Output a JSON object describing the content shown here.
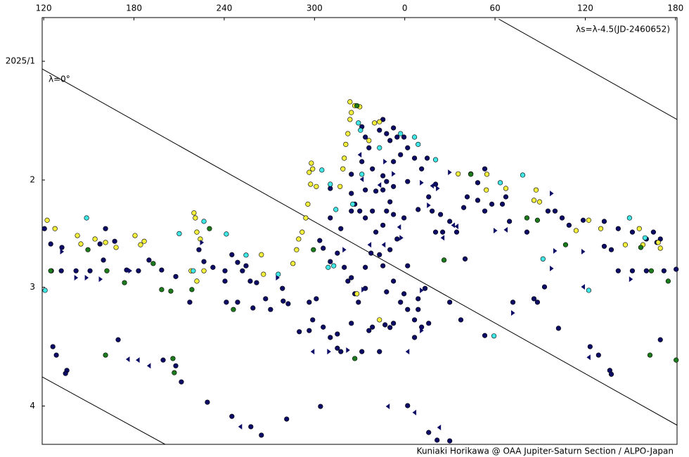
{
  "chart_data": {
    "type": "scatter",
    "grid": false,
    "y_inverted": true,
    "xlim": [
      119,
      541
    ],
    "ylim": [
      -11.4,
      100
    ],
    "xticks": [
      120,
      180,
      240,
      300,
      {
        "value": 360,
        "label": "0"
      },
      {
        "value": 420,
        "label": "60"
      },
      {
        "value": 480,
        "label": "120"
      },
      {
        "value": 540,
        "label": "180"
      }
    ],
    "yticks": [
      {
        "value": 0,
        "label": "2025/1"
      },
      {
        "value": 31,
        "label": "2"
      },
      {
        "value": 59,
        "label": "3"
      },
      {
        "value": 90,
        "label": "4"
      }
    ],
    "formula": "λs=λ-4.5(JD-2460652)",
    "line_label": "λ=0°",
    "credit": "Kuniaki Horikawa @ OAA Jupiter-Saturn Section / ALPO-Japan",
    "line_color": "#000000",
    "lines": [
      {
        "x": [
          119,
          541
        ],
        "y": [
          2.0,
          95.0
        ]
      },
      {
        "x": [
          119,
          200.7
        ],
        "y": [
          82.4,
          100
        ]
      },
      {
        "x": [
          422.5,
          541
        ],
        "y": [
          -11.0,
          15.2
        ]
      }
    ],
    "series": [
      {
        "color": "#0c0c66",
        "marker": "circle",
        "x": [
          120.5,
          124.7,
          132.1,
          125.1,
          131.7,
          141.5,
          150.8,
          159.7,
          157.4,
          161.1,
          167.2,
          175.1,
          183,
          190,
          198.4,
          207.8,
          217.1,
          223.2,
          226.5,
          232.5,
          240.5,
          245.1,
          248.9,
          252.1,
          254.5,
          257.3,
          261.5,
          240.5,
          241.4,
          248.9,
          259.1,
          267.5,
          270.8,
          279.2,
          282.5,
          278.7,
          296.5,
          298.8,
          289.9,
          296.5,
          305.8,
          310.5,
          315.2,
          301.2,
          303.5,
          305.8,
          310.5,
          315.2,
          319.8,
          322.2,
          324.5,
          326.8,
          329.2,
          333.8,
          333.8,
          337.6,
          343.2,
          345.5,
          350.2,
          347.9,
          352.5,
          357.2,
          359.5,
          361.9,
          366.5,
          368.9,
          371.2,
          375.9,
          352.5,
          346.9,
          338.5,
          336.2,
          324.5,
          315.2,
          317.5,
          331.5,
          343.2,
          310.5,
          317.5,
          324.5,
          326.8,
          330.1,
          333.8,
          338.5,
          340.8,
          345.5,
          347.9,
          350.2,
          352.5,
          354.9,
          359.5,
          324.5,
          333.8,
          340.8,
          345.5,
          347.9,
          352.5,
          310.5,
          324.5,
          331.5,
          336.2,
          338.5,
          345.5,
          352.5,
          357.2,
          361.9,
          366.5,
          371.2,
          374.9,
          343.2,
          347.9,
          350.2,
          354.9,
          333.8,
          331.5,
          345.5,
          352.5,
          359.5,
          361.9,
          368.9,
          375.9,
          378.2,
          380.5,
          385.2,
          389.9,
          394.5,
          399.2,
          401.5,
          408.5,
          413.2,
          417.9,
          408.5,
          413.2,
          427.2,
          424.9,
          429.6,
          441.2,
          455.2,
          459.9,
          464.6,
          469.2,
          478.6,
          492.6,
          501.9,
          511.3,
          520.6,
          525.3,
          527.6,
          529.9,
          492.6,
          497.3,
          501.9,
          511.3,
          520.6,
          532.3,
          540.4,
          400.1,
          431.9,
          445.9,
          448.2,
          462.2,
          413.2,
          483.2,
          488.8,
          496.3,
          497.3,
          529.9,
          452.9,
          389.9,
          397.3,
          361.9,
          373.5,
          368.9,
          383.8,
          380.5,
          126.1,
          128.4,
          135.4,
          134.5,
          169.5,
          199.4,
          207.8,
          211.5,
          228.8,
          245.1,
          257.7,
          264.7,
          281.5,
          304.0,
          361.9,
          375.9,
          381.5,
          389.9,
          366.5,
          350.2
        ],
        "y": [
          43.7,
          47.7,
          48.6,
          54.7,
          54.7,
          54.7,
          54.7,
          51.9,
          47.7,
          43.7,
          47.0,
          54.5,
          54.7,
          51.9,
          54.5,
          56.2,
          62.9,
          49.2,
          52.3,
          53.8,
          54.7,
          50.5,
          52.5,
          54.7,
          53.4,
          57.4,
          57.8,
          57.4,
          62.9,
          62.9,
          64.4,
          62.0,
          64.8,
          62.6,
          63.3,
          59.3,
          62.9,
          67.5,
          70.6,
          70.3,
          69.4,
          72.1,
          71.2,
          62.0,
          46.8,
          48.8,
          52.3,
          50.1,
          53.8,
          57.4,
          56.5,
          60.7,
          62.9,
          59.3,
          53.8,
          50.1,
          50.5,
          53.4,
          49.2,
          60.2,
          57.4,
          62.9,
          60.7,
          64.8,
          67.5,
          64.8,
          69.4,
          68.4,
          68.4,
          68.8,
          69.4,
          70.3,
          68.4,
          74.9,
          75.8,
          75.8,
          75.8,
          40.9,
          43.7,
          39.1,
          37.3,
          39.1,
          40.9,
          39.1,
          44.6,
          42.8,
          39.1,
          36.7,
          40.0,
          46.4,
          40.9,
          34.5,
          33.6,
          33.9,
          33.6,
          31.4,
          32.7,
          33.2,
          29.5,
          26.2,
          22.6,
          28.1,
          29.9,
          26.2,
          24.4,
          22.6,
          25.3,
          28.1,
          25.3,
          18.0,
          18.9,
          20.7,
          19.8,
          19.8,
          17.1,
          15.2,
          17.4,
          19.8,
          31.4,
          38.7,
          35.4,
          39.1,
          44.6,
          44.6,
          41.8,
          44.6,
          38.2,
          35.4,
          36.3,
          39.1,
          37.3,
          31.7,
          28.1,
          35.4,
          37.3,
          41.8,
          44.6,
          39.1,
          39.1,
          40.9,
          42.8,
          41.5,
          41.8,
          43.7,
          44.6,
          46.4,
          44.6,
          47.3,
          46.4,
          48.3,
          49.2,
          54.7,
          54.7,
          54.7,
          54.7,
          54.3,
          51.6,
          62.9,
          62.0,
          62.9,
          69.7,
          71.6,
          74.5,
          76.7,
          80.7,
          81.7,
          72.7,
          58.9,
          62.9,
          67.5,
          53.4,
          59.3,
          62.0,
          40.0,
          32.1,
          74.5,
          76.7,
          80.7,
          81.5,
          72.7,
          78.0,
          79.5,
          83.7,
          89.0,
          92.7,
          95.4,
          97.6,
          93.4,
          90.1,
          89.9,
          96.9,
          98.9,
          99.1,
          72.1,
          69.5
        ]
      },
      {
        "color": "#f2ee3c",
        "marker": "circle",
        "x": [
          122.3,
          127.5,
          142.4,
          144.7,
          154.1,
          161.1,
          168.1,
          180.7,
          184.4,
          186.8,
          218.0,
          221.8,
          219.9,
          220.8,
          221.8,
          224.1,
          226.5,
          264.7,
          266.1,
          285.7,
          288.1,
          289.5,
          291.8,
          294.2,
          295.6,
          297.4,
          298.8,
          297.9,
          317.0,
          318.9,
          319.8,
          320.8,
          322.2,
          323.6,
          323.6,
          324.5,
          326.8,
          330.1,
          336.2,
          339.9,
          343.2,
          395.5,
          403.9,
          414.6,
          414.2,
          427.2,
          447.3,
          445.9,
          449.6,
          473.9,
          482.3,
          490.3,
          506.6,
          515.9,
          518.3,
          528.5,
          529.9,
          328.2,
          343.2,
          296.5,
          301.2
        ],
        "y": [
          41.5,
          43.7,
          45.5,
          47.7,
          46.4,
          47.3,
          48.6,
          45.5,
          47.9,
          47.0,
          54.7,
          57.4,
          39.6,
          40.9,
          44.6,
          46.4,
          54.7,
          50.5,
          55.6,
          52.8,
          49.2,
          46.4,
          44.6,
          40.9,
          37.3,
          32.1,
          28.1,
          26.6,
          32.7,
          28.1,
          25.3,
          21.7,
          18.9,
          15.2,
          10.6,
          13.4,
          11.6,
          11.9,
          20.7,
          16.1,
          15.8,
          29.4,
          29.4,
          29.5,
          33.6,
          33.2,
          33.6,
          36.3,
          36.7,
          44.2,
          41.5,
          43.7,
          47.9,
          43.7,
          47.9,
          47.3,
          48.8,
          60.7,
          67.5,
          29.0,
          32.7
        ]
      },
      {
        "color": "#40e6e6",
        "marker": "circle",
        "x": [
          120.9,
          148.5,
          210.1,
          226.5,
          241.4,
          254.5,
          275.9,
          304.9,
          310.5,
          314.2,
          309.1,
          325.4,
          330.6,
          331.5,
          343.2,
          357.2,
          366.5,
          368.9,
          380.5,
          423.5,
          438.4,
          451.9,
          419.3,
          482.3,
          509.4,
          519.7,
          219.4,
          329.2,
          312.8
        ],
        "y": [
          59.8,
          40.9,
          45.0,
          41.8,
          45.1,
          50.6,
          55.6,
          28.4,
          32.1,
          38.7,
          53.8,
          37.3,
          18.0,
          29.5,
          22.6,
          18.9,
          19.8,
          21.7,
          25.7,
          31.7,
          29.7,
          51.6,
          71.7,
          59.8,
          40.9,
          46.1,
          54.7,
          16.1,
          53.4
        ]
      },
      {
        "color": "#1c7a1c",
        "marker": "circle",
        "x": [
          124.7,
          149.4,
          162.0,
          173.7,
          192.8,
          198.4,
          204.5,
          218.5,
          230.2,
          246.1,
          299.3,
          326.8,
          386.1,
          403.9,
          441.2,
          448.2,
          466.9,
          516.9,
          523.9,
          535.1,
          540.4,
          523.0,
          161.1,
          205.9,
          206.8,
          328.2
        ],
        "y": [
          54.7,
          49.2,
          54.7,
          57.8,
          52.8,
          59.6,
          60.0,
          59.6,
          43.7,
          64.8,
          49.2,
          77.6,
          51.9,
          29.5,
          40.9,
          41.5,
          47.9,
          48.6,
          54.7,
          57.4,
          78.0,
          76.7,
          76.7,
          77.6,
          81.3,
          11.6
        ]
      },
      {
        "color": "#0c0c66",
        "marker": "triangle-right",
        "x": [
          132.1,
          141.5,
          148.5,
          157.8,
          177.4,
          225.1,
          275.5,
          319.8,
          322.2,
          332.4,
          352.5,
          357.7,
          371.2,
          375.9,
          371.2,
          381.9,
          431.9,
          420.2,
          459.9,
          478.6,
          510.3,
          309.6,
          371.2,
          346.9,
          389.9,
          457.6,
          457.6
        ],
        "y": [
          49.7,
          56.5,
          56.5,
          56.9,
          54.7,
          47.3,
          56.5,
          49.2,
          75.4,
          59.6,
          29.4,
          46.1,
          70.3,
          37.6,
          59.8,
          33.2,
          65.7,
          44.2,
          49.5,
          49.7,
          56.9,
          75.8,
          31.7,
          26.2,
          29.0,
          34.5,
          54.1
        ]
      },
      {
        "color": "#0c0c66",
        "marker": "triangle-left",
        "x": [
          176.0,
          182.6,
          190.0,
          250.7,
          298.8,
          330.1,
          336.6,
          343.2,
          348.8,
          356.3,
          366.5,
          378.2,
          392.2,
          427.2,
          478.6,
          482.3,
          346.0,
          331.5,
          382.9,
          385.2,
          394.5,
          361.9
        ],
        "y": [
          77.8,
          78.0,
          79.5,
          95.4,
          75.8,
          24.4,
          47.9,
          32.3,
          90.1,
          43.3,
          91.7,
          32.5,
          42.8,
          44.0,
          58.9,
          77.3,
          47.9,
          30.8,
          95.6,
          46.1,
          43.1,
          75.8
        ]
      }
    ]
  }
}
